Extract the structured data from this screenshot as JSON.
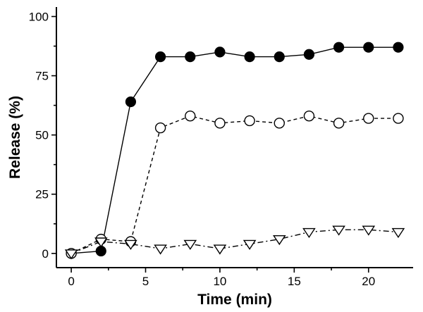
{
  "chart_data": {
    "type": "line",
    "title": "",
    "xlabel": "Time (min)",
    "ylabel": "Release (%)",
    "xlim": [
      -1,
      23
    ],
    "ylim": [
      -6,
      104
    ],
    "x_ticks": [
      0,
      5,
      10,
      15,
      20
    ],
    "y_ticks": [
      0,
      25,
      50,
      75,
      100
    ],
    "grid": false,
    "legend": "none",
    "series": [
      {
        "marker": "filled-circle",
        "line_style": "solid",
        "color": "#000000",
        "points": [
          [
            0,
            0
          ],
          [
            2,
            1
          ],
          [
            4,
            64
          ],
          [
            6,
            83
          ],
          [
            8,
            83
          ],
          [
            10,
            85
          ],
          [
            12,
            83
          ],
          [
            14,
            83
          ],
          [
            16,
            84
          ],
          [
            18,
            87
          ],
          [
            20,
            87
          ],
          [
            22,
            87
          ]
        ]
      },
      {
        "marker": "open-circle",
        "line_style": "dashed",
        "color": "#000000",
        "points": [
          [
            0,
            0
          ],
          [
            2,
            6
          ],
          [
            4,
            5
          ],
          [
            6,
            53
          ],
          [
            8,
            58
          ],
          [
            10,
            55
          ],
          [
            12,
            56
          ],
          [
            14,
            55
          ],
          [
            16,
            58
          ],
          [
            18,
            55
          ],
          [
            20,
            57
          ],
          [
            22,
            57
          ]
        ]
      },
      {
        "marker": "open-triangle-down",
        "line_style": "dash-dot",
        "color": "#000000",
        "points": [
          [
            0,
            0
          ],
          [
            2,
            5
          ],
          [
            4,
            4
          ],
          [
            6,
            2
          ],
          [
            8,
            4
          ],
          [
            10,
            2
          ],
          [
            12,
            4
          ],
          [
            14,
            6
          ],
          [
            16,
            9
          ],
          [
            18,
            10
          ],
          [
            20,
            10
          ],
          [
            22,
            9
          ]
        ]
      }
    ]
  }
}
